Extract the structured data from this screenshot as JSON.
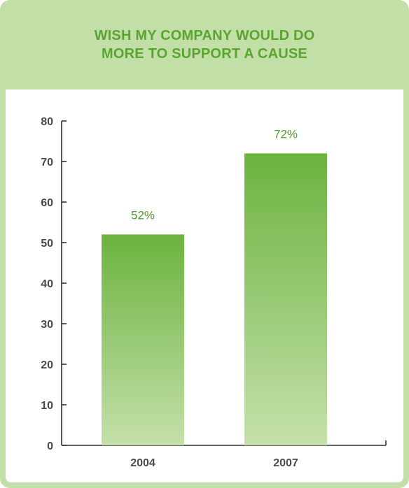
{
  "chart_data": {
    "type": "bar",
    "title": "WISH MY COMPANY WOULD DO\nMORE TO SUPPORT A CAUSE",
    "xlabel": "",
    "ylabel": "",
    "categories": [
      "2004",
      "2007"
    ],
    "values": [
      52,
      72
    ],
    "value_labels": [
      "52%",
      "72%"
    ],
    "ylim": [
      0,
      80
    ],
    "yticks": [
      0,
      10,
      20,
      30,
      40,
      50,
      60,
      70,
      80
    ],
    "grid": false,
    "legend": "none",
    "colors": {
      "bar_top": "#6cb33f",
      "bar_bottom": "#c4e0aa",
      "title": "#5aa530",
      "value_label": "#4f9a2c",
      "frame": "#c3dfa8"
    }
  }
}
